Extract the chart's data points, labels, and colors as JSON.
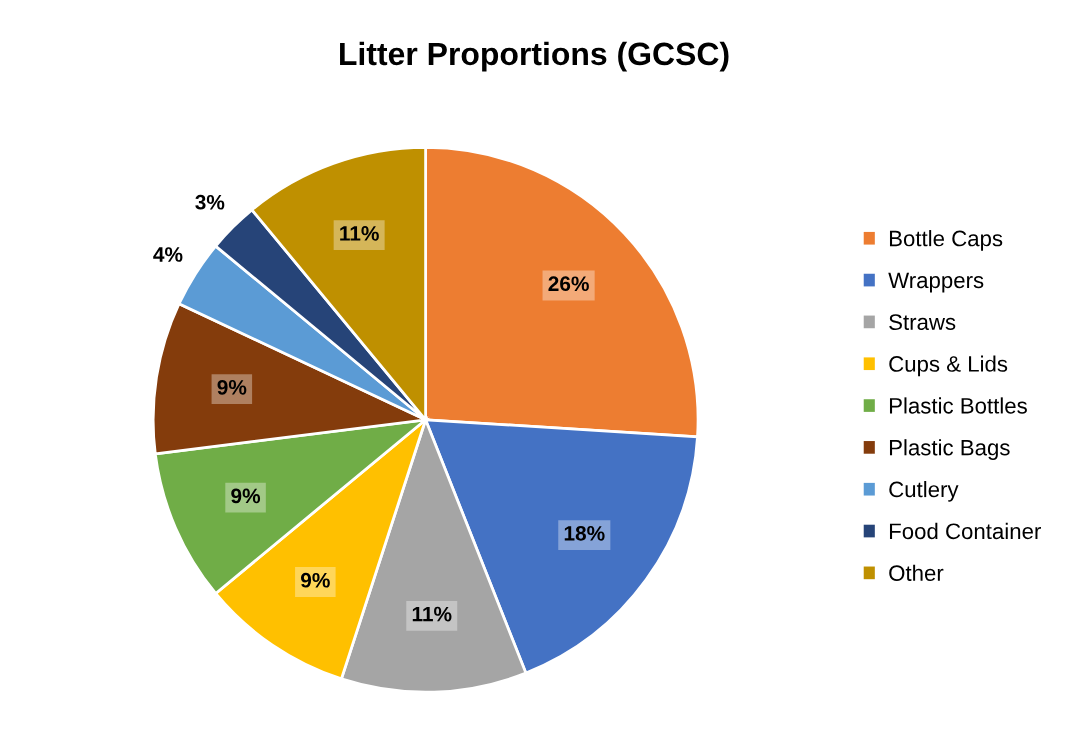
{
  "chart_data": {
    "type": "pie",
    "title": "Litter Proportions (GCSC)",
    "categories": [
      "Bottle Caps",
      "Wrappers",
      "Straws",
      "Cups & Lids",
      "Plastic Bottles",
      "Plastic Bags",
      "Cutlery",
      "Food Container",
      "Other"
    ],
    "values": [
      26,
      18,
      11,
      9,
      9,
      9,
      4,
      3,
      11
    ],
    "colors": [
      "#ed7d31",
      "#4472c4",
      "#a5a5a5",
      "#ffc000",
      "#70ad47",
      "#843c0c",
      "#5b9bd5",
      "#264478",
      "#bf9000"
    ],
    "value_labels": [
      "26%",
      "18%",
      "11%",
      "9%",
      "9%",
      "9%",
      "4%",
      "3%",
      "11%"
    ],
    "legend": "right"
  }
}
